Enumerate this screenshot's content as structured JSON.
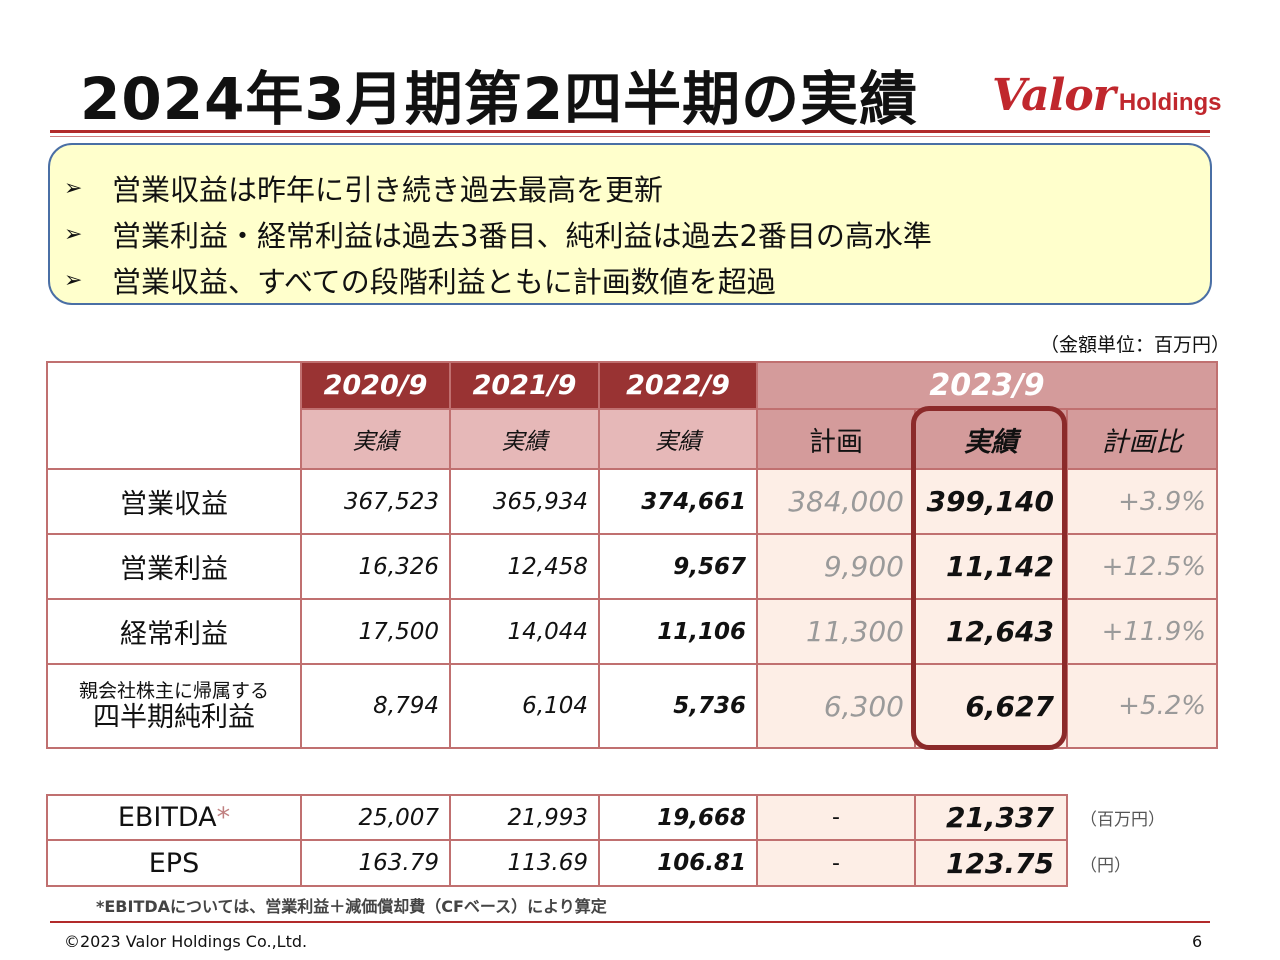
{
  "title": "2024年3月期第2四半期の実績",
  "logo": {
    "main": "Valor",
    "sub": "Holdings"
  },
  "summary": [
    "営業収益は昨年に引き続き過去最高を更新",
    "営業利益・経常利益は過去3番目、純利益は過去2番目の高水準",
    "営業収益、すべての段階利益ともに計画数値を超過"
  ],
  "bullet_glyph": "➢",
  "unit_note": "（金額単位：百万円）",
  "table": {
    "years": [
      "2020/9",
      "2021/9",
      "2022/9",
      "2023/9"
    ],
    "sub_headers": {
      "actual": "実績",
      "plan": "計画",
      "ratio": "計画比"
    },
    "rows": [
      {
        "label": "営業収益",
        "v2020": "367,523",
        "v2021": "365,934",
        "v2022": "374,661",
        "plan": "384,000",
        "actual": "399,140",
        "ratio": "+3.9%"
      },
      {
        "label": "営業利益",
        "v2020": "16,326",
        "v2021": "12,458",
        "v2022": "9,567",
        "plan": "9,900",
        "actual": "11,142",
        "ratio": "+12.5%"
      },
      {
        "label": "経常利益",
        "v2020": "17,500",
        "v2021": "14,044",
        "v2022": "11,106",
        "plan": "11,300",
        "actual": "12,643",
        "ratio": "+11.9%"
      },
      {
        "label_small": "親会社株主に帰属する",
        "label": "四半期純利益",
        "v2020": "8,794",
        "v2021": "6,104",
        "v2022": "5,736",
        "plan": "6,300",
        "actual": "6,627",
        "ratio": "+5.2%"
      }
    ]
  },
  "table2": {
    "rows": [
      {
        "label": "EBITDA",
        "mark": "*",
        "v2020": "25,007",
        "v2021": "21,993",
        "v2022": "19,668",
        "plan": "-",
        "actual": "21,337",
        "unit": "（百万円）"
      },
      {
        "label": "EPS",
        "v2020": "163.79",
        "v2021": "113.69",
        "v2022": "106.81",
        "plan": "-",
        "actual": "123.75",
        "unit": "（円）"
      }
    ]
  },
  "footnote": "*EBITDAについては、営業利益＋減価償却費（CFベース）により算定",
  "footer": {
    "copyright": "©2023 Valor Holdings Co.,Ltd.",
    "page": "6"
  }
}
